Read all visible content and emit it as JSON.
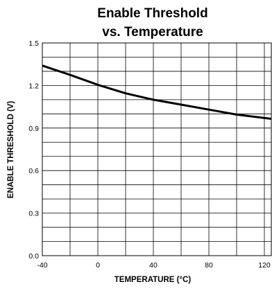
{
  "chart_data": {
    "type": "line",
    "title_lines": [
      "Enable Threshold",
      "vs. Temperature"
    ],
    "xlabel": "TEMPERATURE (°C)",
    "ylabel": "ENABLE THRESHOLD (V)",
    "xlim": [
      -40,
      125
    ],
    "ylim": [
      0.0,
      1.5
    ],
    "x_ticks": [
      -40,
      0,
      40,
      80,
      120
    ],
    "x_tick_labels": [
      "-40",
      "0",
      "40",
      "80",
      "120"
    ],
    "y_ticks": [
      0.0,
      0.3,
      0.6,
      0.9,
      1.2,
      1.5
    ],
    "y_tick_labels": [
      "0.0",
      "0.3",
      "0.6",
      "0.9",
      "1.2",
      "1.5"
    ],
    "grid": true,
    "line_color": "#000000",
    "series": [
      {
        "x": [
          -40,
          -20,
          0,
          20,
          40,
          60,
          80,
          100,
          125
        ],
        "y": [
          1.34,
          1.275,
          1.205,
          1.145,
          1.1,
          1.065,
          1.03,
          0.995,
          0.965
        ]
      }
    ]
  }
}
